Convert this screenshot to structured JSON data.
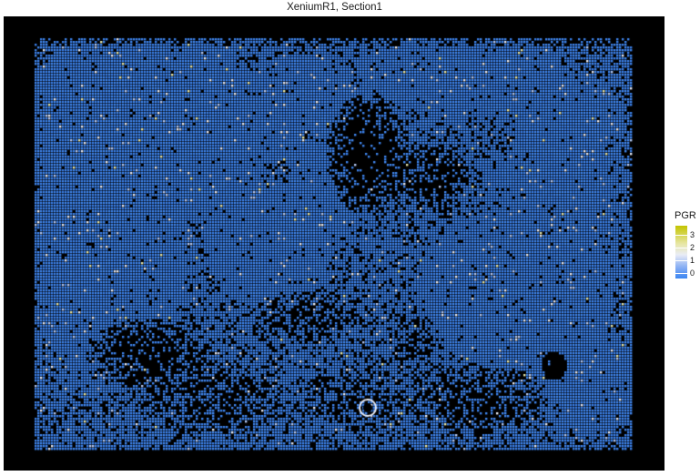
{
  "chart_data": {
    "type": "heatmap",
    "title": "XeniumR1, Section1",
    "xlabel": "",
    "ylabel": "",
    "legend": {
      "title": "PGR",
      "placement": "right",
      "ticks": [
        "0",
        "1",
        "2",
        "3"
      ],
      "range": [
        0,
        3.3
      ],
      "colors": {
        "low": "#3a85f2",
        "mid": "#e9ecf6",
        "high": "#c3c400",
        "background": "#000000"
      }
    },
    "description_values": {
      "dominant_value": 0,
      "sparse_high_values": [
        1,
        2,
        3
      ]
    }
  }
}
